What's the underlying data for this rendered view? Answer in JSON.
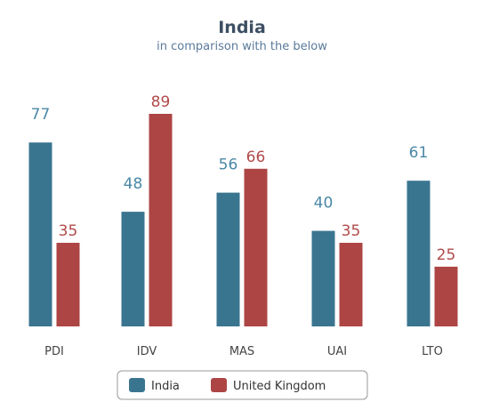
{
  "colors": {
    "title": "#3d4f63",
    "subtitle": "#5a7a9a",
    "tick": "#444444",
    "legend_text": "#333333",
    "legend_border": "#999999"
  },
  "chart_data": {
    "type": "bar",
    "title": "India",
    "subtitle": "in comparison with the below",
    "categories": [
      "PDI",
      "IDV",
      "MAS",
      "UAI",
      "LTO"
    ],
    "series": [
      {
        "name": "India",
        "color": "#3a7590",
        "label_color": "#4a88a6",
        "values": [
          77,
          48,
          56,
          40,
          61
        ]
      },
      {
        "name": "United Kingdom",
        "color": "#ad4545",
        "label_color": "#b24a4a",
        "values": [
          35,
          89,
          66,
          35,
          25
        ]
      }
    ],
    "ylim": [
      0,
      89
    ],
    "grid": false,
    "legend": "bottom-center",
    "data_labels": true
  }
}
